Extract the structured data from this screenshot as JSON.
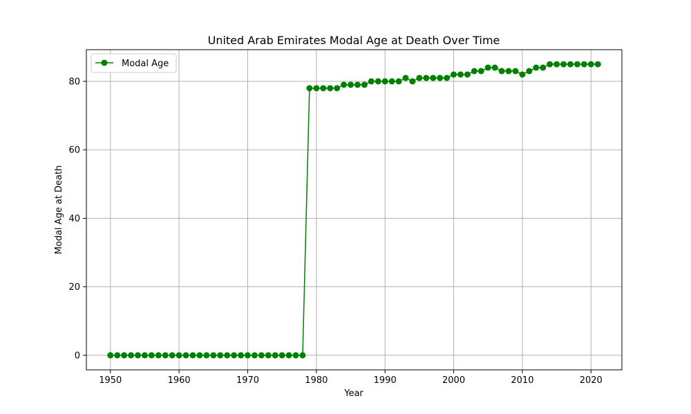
{
  "chart_data": {
    "type": "line",
    "title": "United Arab Emirates Modal Age at Death Over Time",
    "xlabel": "Year",
    "ylabel": "Modal Age at Death",
    "xlim": [
      1946.5,
      2024.5
    ],
    "ylim": [
      -4.25,
      89.25
    ],
    "xticks": [
      1950,
      1960,
      1970,
      1980,
      1990,
      2000,
      2010,
      2020
    ],
    "yticks": [
      0,
      20,
      40,
      60,
      80
    ],
    "grid": true,
    "legend_position": "top-left",
    "series": [
      {
        "name": "Modal Age",
        "color": "#008000",
        "marker": "circle",
        "x": [
          1950,
          1951,
          1952,
          1953,
          1954,
          1955,
          1956,
          1957,
          1958,
          1959,
          1960,
          1961,
          1962,
          1963,
          1964,
          1965,
          1966,
          1967,
          1968,
          1969,
          1970,
          1971,
          1972,
          1973,
          1974,
          1975,
          1976,
          1977,
          1978,
          1979,
          1980,
          1981,
          1982,
          1983,
          1984,
          1985,
          1986,
          1987,
          1988,
          1989,
          1990,
          1991,
          1992,
          1993,
          1994,
          1995,
          1996,
          1997,
          1998,
          1999,
          2000,
          2001,
          2002,
          2003,
          2004,
          2005,
          2006,
          2007,
          2008,
          2009,
          2010,
          2011,
          2012,
          2013,
          2014,
          2015,
          2016,
          2017,
          2018,
          2019,
          2020,
          2021
        ],
        "y": [
          0,
          0,
          0,
          0,
          0,
          0,
          0,
          0,
          0,
          0,
          0,
          0,
          0,
          0,
          0,
          0,
          0,
          0,
          0,
          0,
          0,
          0,
          0,
          0,
          0,
          0,
          0,
          0,
          0,
          78,
          78,
          78,
          78,
          78,
          79,
          79,
          79,
          79,
          80,
          80,
          80,
          80,
          80,
          81,
          80,
          81,
          81,
          81,
          81,
          81,
          82,
          82,
          82,
          83,
          83,
          84,
          84,
          83,
          83,
          83,
          82,
          83,
          84,
          84,
          85,
          85,
          85,
          85,
          85,
          85,
          85,
          85
        ]
      }
    ]
  }
}
